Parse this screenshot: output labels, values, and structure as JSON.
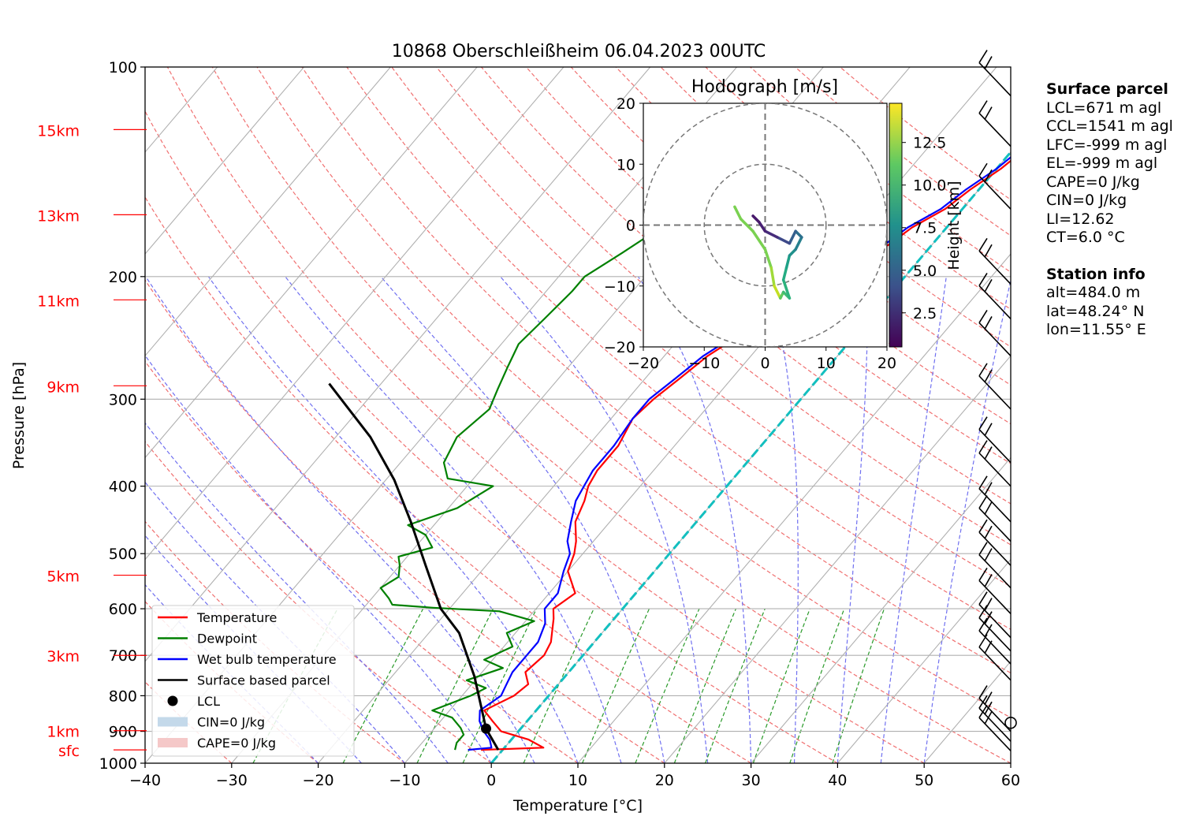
{
  "chart_data": {
    "type": "skew-t log-p",
    "title": "10868 Oberschleißheim 06.04.2023 00UTC",
    "xlabel": "Temperature [°C]",
    "ylabel": "Pressure [hPa]",
    "xlim": [
      -40,
      60
    ],
    "ylim": [
      1000,
      100
    ],
    "x_ticks": [
      -40,
      -30,
      -20,
      -10,
      0,
      10,
      20,
      30,
      40,
      50,
      60
    ],
    "x_tick_labels": [
      "−40",
      "−30",
      "−20",
      "−10",
      "0",
      "10",
      "20",
      "30",
      "40",
      "50",
      "60"
    ],
    "y_ticks": [
      100,
      200,
      300,
      400,
      500,
      600,
      700,
      800,
      900,
      1000
    ],
    "y_tick_labels": [
      "100",
      "200",
      "300",
      "400",
      "500",
      "600",
      "700",
      "800",
      "900",
      "1000"
    ],
    "height_markers": [
      {
        "label": "15km",
        "p": 123
      },
      {
        "label": "13km",
        "p": 163
      },
      {
        "label": "11km",
        "p": 216
      },
      {
        "label": "9km",
        "p": 287
      },
      {
        "label": "5km",
        "p": 537
      },
      {
        "label": "3km",
        "p": 700
      },
      {
        "label": "1km",
        "p": 898
      },
      {
        "label": "sfc",
        "p": 957
      }
    ],
    "series": [
      {
        "name": "Temperature",
        "color": "#ff0000",
        "points": [
          [
            -2.5,
            957
          ],
          [
            4.5,
            950
          ],
          [
            2,
            925
          ],
          [
            -2,
            900
          ],
          [
            -4,
            870
          ],
          [
            -6,
            840
          ],
          [
            -4,
            800
          ],
          [
            -3.5,
            770
          ],
          [
            -5,
            740
          ],
          [
            -4.5,
            700
          ],
          [
            -5,
            670
          ],
          [
            -7,
            620
          ],
          [
            -8,
            600
          ],
          [
            -7,
            570
          ],
          [
            -10,
            530
          ],
          [
            -11,
            500
          ],
          [
            -12,
            480
          ],
          [
            -14,
            450
          ],
          [
            -15,
            420
          ],
          [
            -16,
            400
          ],
          [
            -16.5,
            380
          ],
          [
            -16.5,
            350
          ],
          [
            -17.5,
            320
          ],
          [
            -17,
            300
          ],
          [
            -16,
            280
          ],
          [
            -15,
            260
          ],
          [
            -13,
            240
          ],
          [
            -11.5,
            225
          ],
          [
            -10,
            210
          ],
          [
            -8,
            200
          ],
          [
            -7,
            190
          ],
          [
            -5,
            180
          ],
          [
            -4,
            170
          ],
          [
            -2,
            160
          ],
          [
            -1,
            150
          ],
          [
            0.5,
            140
          ],
          [
            1.5,
            130
          ],
          [
            2,
            120
          ]
        ]
      },
      {
        "name": "Dewpoint",
        "color": "#008000",
        "points": [
          [
            -5.5,
            957
          ],
          [
            -6,
            935
          ],
          [
            -6,
            910
          ],
          [
            -7,
            890
          ],
          [
            -9,
            860
          ],
          [
            -12,
            840
          ],
          [
            -9,
            800
          ],
          [
            -8,
            780
          ],
          [
            -11,
            760
          ],
          [
            -8,
            730
          ],
          [
            -11,
            710
          ],
          [
            -9,
            680
          ],
          [
            -11,
            650
          ],
          [
            -9,
            625
          ],
          [
            -14,
            605
          ],
          [
            -22,
            598
          ],
          [
            -27,
            592
          ],
          [
            -28,
            580
          ],
          [
            -30,
            560
          ],
          [
            -29,
            540
          ],
          [
            -30,
            520
          ],
          [
            -31,
            505
          ],
          [
            -28,
            490
          ],
          [
            -30,
            470
          ],
          [
            -33,
            455
          ],
          [
            -29,
            430
          ],
          [
            -27,
            400
          ],
          [
            -33,
            390
          ],
          [
            -35,
            370
          ],
          [
            -36,
            340
          ],
          [
            -35,
            310
          ],
          [
            -36,
            290
          ],
          [
            -37,
            270
          ],
          [
            -38,
            250
          ],
          [
            -37.5,
            230
          ],
          [
            -37,
            210
          ],
          [
            -37,
            200
          ],
          [
            -35,
            185
          ],
          [
            -33,
            170
          ],
          [
            -30,
            155
          ],
          [
            -28,
            145
          ],
          [
            -26,
            135
          ],
          [
            -24,
            125
          ],
          [
            -22,
            118
          ]
        ]
      },
      {
        "name": "Wet bulb temperature",
        "color": "#0000ff",
        "points": [
          [
            -4,
            957
          ],
          [
            -1.5,
            950
          ],
          [
            -2.5,
            925
          ],
          [
            -4,
            900
          ],
          [
            -5.5,
            870
          ],
          [
            -6.5,
            840
          ],
          [
            -5.5,
            800
          ],
          [
            -6,
            770
          ],
          [
            -6.5,
            740
          ],
          [
            -6.5,
            700
          ],
          [
            -6.5,
            670
          ],
          [
            -7.5,
            630
          ],
          [
            -9,
            600
          ],
          [
            -9,
            570
          ],
          [
            -10.5,
            530
          ],
          [
            -11.5,
            500
          ],
          [
            -13,
            480
          ],
          [
            -14.5,
            450
          ],
          [
            -16,
            420
          ],
          [
            -16.5,
            400
          ],
          [
            -17,
            380
          ],
          [
            -17,
            350
          ],
          [
            -17.5,
            320
          ],
          [
            -17.5,
            300
          ],
          [
            -16.5,
            280
          ],
          [
            -15.5,
            260
          ],
          [
            -13.5,
            240
          ],
          [
            -12,
            225
          ],
          [
            -10.5,
            210
          ],
          [
            -8.5,
            200
          ],
          [
            -7.5,
            190
          ],
          [
            -5.5,
            180
          ],
          [
            -4.5,
            170
          ],
          [
            -2.5,
            160
          ],
          [
            -1.5,
            150
          ],
          [
            0,
            140
          ],
          [
            1,
            130
          ],
          [
            1.5,
            120
          ]
        ]
      },
      {
        "name": "Surface based parcel",
        "color": "#000000",
        "points": [
          [
            -0.5,
            957
          ],
          [
            -4,
            892
          ],
          [
            -10.5,
            750
          ],
          [
            -16.5,
            650
          ],
          [
            -21,
            600
          ],
          [
            -27,
            520
          ],
          [
            -33,
            450
          ],
          [
            -39,
            392
          ],
          [
            -46,
            340
          ],
          [
            -56,
            285
          ]
        ]
      }
    ],
    "lcl": {
      "name": "LCL",
      "t": -4,
      "p": 892
    },
    "legend_extra": [
      {
        "name": "CIN=0 J/kg",
        "color": "#c4d9ea"
      },
      {
        "name": "CAPE=0 J/kg",
        "color": "#f5c8c8"
      }
    ],
    "legend_placement": "lower-left",
    "wind_barbs_p": [
      110,
      130,
      160,
      205,
      230,
      260,
      310,
      370,
      400,
      450,
      480,
      520,
      560,
      610,
      660,
      690,
      720,
      760,
      900,
      930,
      960
    ],
    "hodograph": {
      "title": "Hodograph [m/s]",
      "xlim": [
        -20,
        20
      ],
      "ylim": [
        -20,
        20
      ],
      "ticks": [
        -20,
        -10,
        0,
        10,
        20
      ],
      "tick_labels": [
        "−20",
        "−10",
        "0",
        "10",
        "20"
      ],
      "rings": [
        10,
        20
      ],
      "colorbar_label": "Height [km]",
      "colorbar_ticks": [
        2.5,
        5.0,
        7.5,
        10.0,
        12.5
      ],
      "colorbar_tick_labels": [
        "2.5",
        "5.0",
        "7.5",
        "10.0",
        "12.5"
      ],
      "colorbar_range": [
        0.5,
        14.8
      ]
    }
  },
  "station_panel": {
    "surface_title": "Surface parcel",
    "surface_items": [
      "LCL=671 m agl",
      "CCL=1541 m agl",
      "LFC=-999 m agl",
      "EL=-999 m agl",
      "CAPE=0 J/kg",
      "CIN=0 J/kg",
      "LI=12.62",
      "CT=6.0 °C"
    ],
    "station_title": "Station info",
    "station_items": [
      "alt=484.0 m",
      "lat=48.24° N",
      "lon=11.55° E"
    ]
  }
}
